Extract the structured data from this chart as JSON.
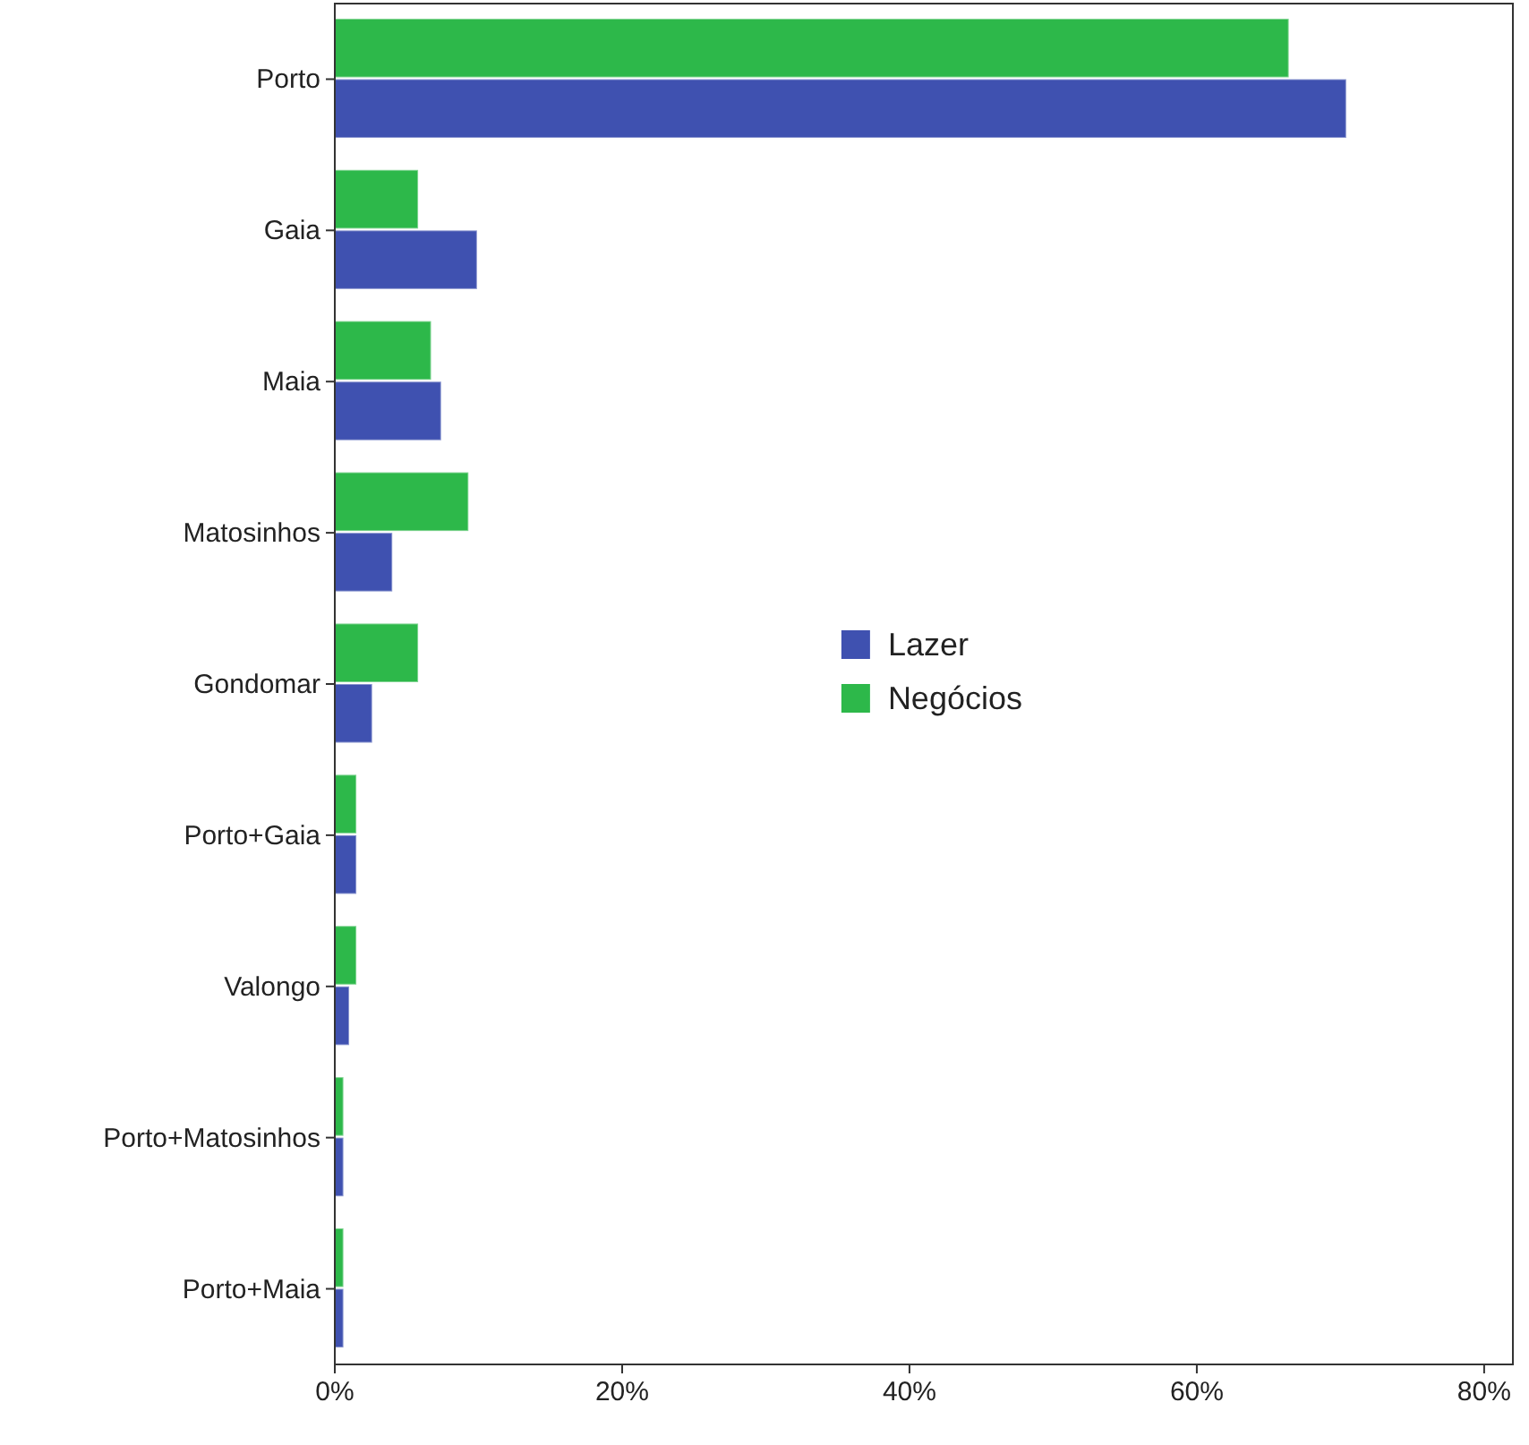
{
  "chart_data": {
    "type": "bar",
    "orientation": "horizontal",
    "categories": [
      "Porto",
      "Gaia",
      "Maia",
      "Matosinhos",
      "Gondomar",
      "Porto+Gaia",
      "Valongo",
      "Porto+Matosinhos",
      "Porto+Maia"
    ],
    "series": [
      {
        "name": "Lazer",
        "color": "#3f51b0",
        "values": [
          70.4,
          9.9,
          7.4,
          4.0,
          2.6,
          1.5,
          1.0,
          0.6,
          0.6
        ]
      },
      {
        "name": "Negócios",
        "color": "#2db84a",
        "values": [
          66.4,
          5.8,
          6.7,
          9.3,
          5.8,
          1.5,
          1.5,
          0.6,
          0.6
        ]
      }
    ],
    "xlim": [
      0,
      82
    ],
    "xticks": [
      {
        "value": 0,
        "label": "0%"
      },
      {
        "value": 20,
        "label": "20%"
      },
      {
        "value": 40,
        "label": "40%"
      },
      {
        "value": 60,
        "label": "60%"
      },
      {
        "value": 80,
        "label": "80%"
      }
    ],
    "grid": false,
    "legend": "right"
  }
}
